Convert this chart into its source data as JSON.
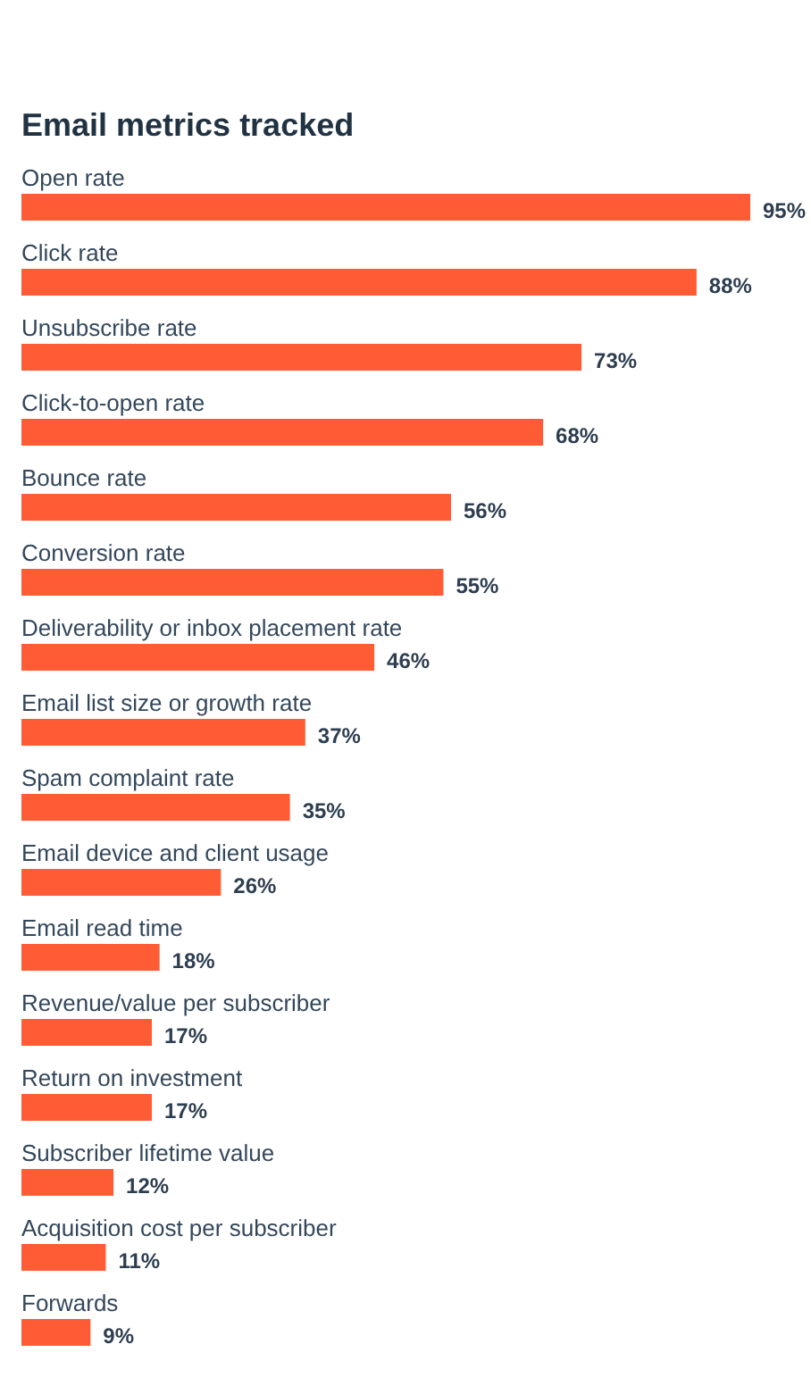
{
  "chart_data": {
    "type": "bar",
    "orientation": "horizontal",
    "title": "Email metrics tracked",
    "categories": [
      "Open rate",
      "Click rate",
      "Unsubscribe rate",
      "Click-to-open rate",
      "Bounce rate",
      "Conversion rate",
      "Deliverability or inbox placement rate",
      "Email list size or growth rate",
      "Spam complaint rate",
      "Email device and client usage",
      "Email read time",
      "Revenue/value per subscriber",
      "Return on investment",
      "Subscriber lifetime value",
      "Acquisition cost per subscriber",
      "Forwards"
    ],
    "values": [
      95,
      88,
      73,
      68,
      56,
      55,
      46,
      37,
      35,
      26,
      18,
      17,
      17,
      12,
      11,
      9
    ],
    "value_labels": [
      "95%",
      "88%",
      "73%",
      "68%",
      "56%",
      "55%",
      "46%",
      "37%",
      "35%",
      "26%",
      "18%",
      "17%",
      "17%",
      "12%",
      "11%",
      "9%"
    ],
    "color": "#ff5c35"
  }
}
